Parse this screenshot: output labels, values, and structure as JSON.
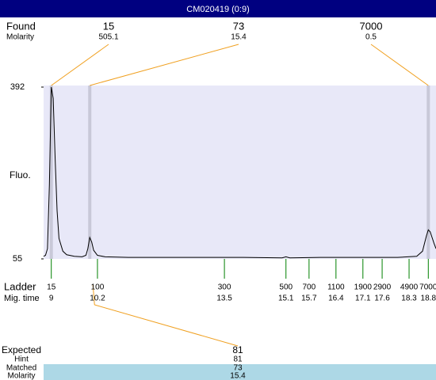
{
  "header": {
    "title": "CM020419 (0:9)"
  },
  "found": {
    "label": "Found",
    "molarity_label": "Molarity",
    "peaks": [
      {
        "size": 15,
        "molarity": 505.1
      },
      {
        "size": 73,
        "molarity": 15.4
      },
      {
        "size": 7000,
        "molarity": 0.5
      }
    ]
  },
  "chart_data": {
    "type": "line",
    "y_label": "Fluo.",
    "color": "#000000",
    "xlim": [
      8.8,
      19.0
    ],
    "ylim": [
      55,
      392
    ],
    "yticks": [
      55,
      392
    ],
    "x": [
      8.8,
      8.85,
      8.9,
      8.95,
      9.0,
      9.05,
      9.1,
      9.15,
      9.2,
      9.3,
      9.4,
      9.6,
      9.8,
      9.9,
      9.95,
      10.0,
      10.05,
      10.1,
      10.2,
      10.4,
      11,
      12,
      13,
      14,
      15,
      15.1,
      15.2,
      16,
      17,
      18,
      18.5,
      18.65,
      18.75,
      18.8,
      18.85,
      18.95,
      19.0
    ],
    "values": [
      60,
      62,
      75,
      200,
      392,
      370,
      250,
      150,
      95,
      70,
      63,
      60,
      59,
      62,
      75,
      97,
      88,
      72,
      62,
      59,
      58,
      58,
      58,
      58,
      57,
      59,
      57,
      58,
      58,
      58,
      60,
      70,
      100,
      112,
      108,
      85,
      75
    ],
    "markers": [
      9.0,
      10.0,
      18.8
    ]
  },
  "ladder": {
    "label": "Ladder",
    "time_label": "Mig. time",
    "sizes": [
      15,
      100,
      300,
      500,
      700,
      1100,
      1900,
      2900,
      4900,
      7000
    ],
    "times": [
      9,
      10.2,
      13.5,
      15.1,
      15.7,
      16.4,
      17.1,
      17.6,
      18.3,
      18.8
    ]
  },
  "expected": {
    "label": "Expected",
    "size": 81,
    "hint_label": "Hint",
    "hint": 81,
    "matched_label": "Matched",
    "matched": 73,
    "molarity_label": "Molarity",
    "molarity": 15.4
  }
}
